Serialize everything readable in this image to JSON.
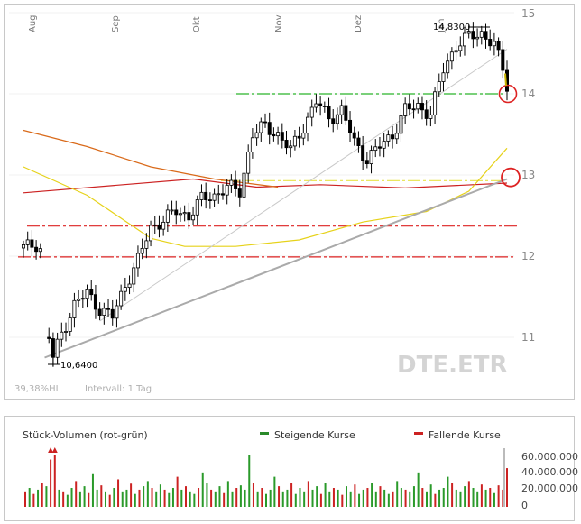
{
  "chart_data": [
    {
      "type": "candlestick",
      "symbol": "DTE.ETR",
      "months": [
        "Aug",
        "Sep",
        "Okt",
        "Nov",
        "Dez",
        "Jan"
      ],
      "y_ticks": [
        "15",
        "14",
        "13",
        "12",
        "11"
      ],
      "ylim": [
        10.6,
        15.2
      ],
      "grid": true,
      "high_label": "14,8300",
      "low_label": "10,6400",
      "high_value": 14.83,
      "low_value": 10.64,
      "volatility_label": "39,38%HL",
      "interval_label": "Intervall: 1 Tag",
      "colors": {
        "candle": "#000000",
        "ma_long": "#cc2222",
        "ma_orange": "#d96a1a",
        "ma_yellow": "#e6d21a",
        "resistance_green": "#2bb52b",
        "support_red": "#dd2222",
        "support_yellow": "#e8e24a",
        "trend_gray": "#aaaaaa",
        "marker": "#dd2222"
      },
      "horizontal_levels": [
        {
          "value": 14.0,
          "style": "dash-dot",
          "color": "green"
        },
        {
          "value": 12.93,
          "style": "dash-dot",
          "color": "yellow"
        },
        {
          "value": 12.37,
          "style": "dash-dot",
          "color": "red"
        },
        {
          "value": 11.99,
          "style": "dash-dot",
          "color": "red"
        }
      ],
      "price_path": [
        [
          0,
          12.1
        ],
        [
          3,
          12.15
        ],
        [
          5,
          12.05
        ],
        [
          6,
          11.0
        ],
        [
          7,
          10.75
        ],
        [
          9,
          11.05
        ],
        [
          12,
          11.4
        ],
        [
          15,
          11.55
        ],
        [
          18,
          11.35
        ],
        [
          21,
          11.25
        ],
        [
          24,
          11.65
        ],
        [
          27,
          11.95
        ],
        [
          30,
          12.35
        ],
        [
          33,
          12.45
        ],
        [
          36,
          12.55
        ],
        [
          39,
          12.5
        ],
        [
          42,
          12.7
        ],
        [
          45,
          12.75
        ],
        [
          48,
          12.85
        ],
        [
          51,
          12.8
        ],
        [
          54,
          13.5
        ],
        [
          57,
          13.6
        ],
        [
          60,
          13.5
        ],
        [
          63,
          13.3
        ],
        [
          66,
          13.6
        ],
        [
          69,
          13.9
        ],
        [
          72,
          13.7
        ],
        [
          75,
          13.8
        ],
        [
          78,
          13.4
        ],
        [
          81,
          13.2
        ],
        [
          84,
          13.35
        ],
        [
          87,
          13.5
        ],
        [
          90,
          13.8
        ],
        [
          93,
          13.85
        ],
        [
          96,
          13.75
        ],
        [
          99,
          14.3
        ],
        [
          102,
          14.6
        ],
        [
          105,
          14.7
        ],
        [
          108,
          14.75
        ],
        [
          111,
          14.6
        ],
        [
          113,
          14.3
        ],
        [
          114,
          14.1
        ]
      ],
      "moving_averages": [
        {
          "name": "red",
          "values": [
            [
              0,
              12.78
            ],
            [
              40,
              12.95
            ],
            [
              55,
              12.85
            ],
            [
              70,
              12.88
            ],
            [
              90,
              12.84
            ],
            [
              114,
              12.9
            ]
          ]
        },
        {
          "name": "orange",
          "values": [
            [
              0,
              13.55
            ],
            [
              15,
              13.35
            ],
            [
              30,
              13.1
            ],
            [
              45,
              12.95
            ],
            [
              60,
              12.85
            ]
          ]
        },
        {
          "name": "yellow",
          "values": [
            [
              0,
              13.1
            ],
            [
              15,
              12.75
            ],
            [
              30,
              12.22
            ],
            [
              38,
              12.12
            ],
            [
              50,
              12.12
            ],
            [
              65,
              12.2
            ],
            [
              80,
              12.42
            ],
            [
              95,
              12.55
            ],
            [
              105,
              12.8
            ],
            [
              114,
              13.33
            ]
          ]
        }
      ],
      "trendlines": [
        {
          "from": [
            5,
            10.75
          ],
          "to": [
            114,
            12.95
          ],
          "name": "long support"
        },
        {
          "from": [
            18,
            11.2
          ],
          "to": [
            114,
            14.55
          ],
          "name": "steep support"
        }
      ]
    },
    {
      "type": "bar",
      "title": "Stück-Volumen (rot-grün)",
      "legend_up": "Steigende Kurse",
      "legend_down": "Fallende Kurse",
      "y_ticks": [
        "60.000.000",
        "40.000.000",
        "20.000.000",
        "0"
      ],
      "ylim": [
        0,
        65000000
      ],
      "volumes": [
        [
          0,
          18,
          "r"
        ],
        [
          1,
          22,
          "g"
        ],
        [
          2,
          15,
          "r"
        ],
        [
          3,
          20,
          "g"
        ],
        [
          4,
          28,
          "r"
        ],
        [
          5,
          24,
          "g"
        ],
        [
          6,
          55,
          "r"
        ],
        [
          7,
          60,
          "r"
        ],
        [
          8,
          20,
          "g"
        ],
        [
          9,
          18,
          "r"
        ],
        [
          10,
          14,
          "g"
        ],
        [
          11,
          22,
          "g"
        ],
        [
          12,
          30,
          "r"
        ],
        [
          13,
          18,
          "g"
        ],
        [
          14,
          24,
          "g"
        ],
        [
          15,
          16,
          "r"
        ],
        [
          16,
          38,
          "g"
        ],
        [
          17,
          20,
          "g"
        ],
        [
          18,
          25,
          "r"
        ],
        [
          19,
          18,
          "g"
        ],
        [
          20,
          14,
          "r"
        ],
        [
          21,
          22,
          "g"
        ],
        [
          22,
          32,
          "r"
        ],
        [
          23,
          18,
          "g"
        ],
        [
          24,
          20,
          "g"
        ],
        [
          25,
          27,
          "r"
        ],
        [
          26,
          15,
          "g"
        ],
        [
          27,
          20,
          "r"
        ],
        [
          28,
          24,
          "g"
        ],
        [
          29,
          30,
          "g"
        ],
        [
          30,
          22,
          "r"
        ],
        [
          31,
          18,
          "g"
        ],
        [
          32,
          26,
          "g"
        ],
        [
          33,
          20,
          "r"
        ],
        [
          34,
          16,
          "g"
        ],
        [
          35,
          22,
          "g"
        ],
        [
          36,
          35,
          "r"
        ],
        [
          37,
          20,
          "g"
        ],
        [
          38,
          24,
          "r"
        ],
        [
          39,
          18,
          "g"
        ],
        [
          40,
          15,
          "g"
        ],
        [
          41,
          22,
          "r"
        ],
        [
          42,
          40,
          "g"
        ],
        [
          43,
          28,
          "g"
        ],
        [
          44,
          20,
          "r"
        ],
        [
          45,
          18,
          "g"
        ],
        [
          46,
          24,
          "g"
        ],
        [
          47,
          16,
          "r"
        ],
        [
          48,
          30,
          "g"
        ],
        [
          49,
          18,
          "g"
        ],
        [
          50,
          22,
          "r"
        ],
        [
          51,
          25,
          "g"
        ],
        [
          52,
          20,
          "g"
        ],
        [
          53,
          60,
          "g"
        ],
        [
          54,
          28,
          "r"
        ],
        [
          55,
          18,
          "g"
        ],
        [
          56,
          22,
          "r"
        ],
        [
          57,
          15,
          "g"
        ],
        [
          58,
          20,
          "g"
        ],
        [
          59,
          35,
          "g"
        ],
        [
          60,
          24,
          "r"
        ],
        [
          61,
          18,
          "g"
        ],
        [
          62,
          20,
          "g"
        ],
        [
          63,
          28,
          "r"
        ],
        [
          64,
          15,
          "g"
        ],
        [
          65,
          22,
          "g"
        ],
        [
          66,
          18,
          "g"
        ],
        [
          67,
          30,
          "r"
        ],
        [
          68,
          20,
          "g"
        ],
        [
          69,
          24,
          "g"
        ],
        [
          70,
          15,
          "r"
        ],
        [
          71,
          28,
          "g"
        ],
        [
          72,
          18,
          "g"
        ],
        [
          73,
          22,
          "r"
        ],
        [
          74,
          20,
          "g"
        ],
        [
          75,
          14,
          "r"
        ],
        [
          76,
          24,
          "g"
        ],
        [
          77,
          18,
          "g"
        ],
        [
          78,
          26,
          "r"
        ],
        [
          79,
          15,
          "g"
        ],
        [
          80,
          20,
          "g"
        ],
        [
          81,
          22,
          "r"
        ],
        [
          82,
          28,
          "g"
        ],
        [
          83,
          18,
          "g"
        ],
        [
          84,
          24,
          "r"
        ],
        [
          85,
          20,
          "g"
        ],
        [
          86,
          15,
          "g"
        ],
        [
          87,
          18,
          "r"
        ],
        [
          88,
          30,
          "g"
        ],
        [
          89,
          22,
          "g"
        ],
        [
          90,
          20,
          "r"
        ],
        [
          91,
          18,
          "g"
        ],
        [
          92,
          24,
          "g"
        ],
        [
          93,
          40,
          "g"
        ],
        [
          94,
          22,
          "r"
        ],
        [
          95,
          18,
          "g"
        ],
        [
          96,
          26,
          "g"
        ],
        [
          97,
          15,
          "r"
        ],
        [
          98,
          20,
          "g"
        ],
        [
          99,
          22,
          "g"
        ],
        [
          100,
          35,
          "g"
        ],
        [
          101,
          28,
          "r"
        ],
        [
          102,
          20,
          "g"
        ],
        [
          103,
          18,
          "g"
        ],
        [
          104,
          24,
          "g"
        ],
        [
          105,
          30,
          "r"
        ],
        [
          106,
          22,
          "g"
        ],
        [
          107,
          18,
          "g"
        ],
        [
          108,
          26,
          "r"
        ],
        [
          109,
          20,
          "g"
        ],
        [
          110,
          22,
          "r"
        ],
        [
          111,
          16,
          "g"
        ],
        [
          112,
          25,
          "r"
        ],
        [
          113,
          20,
          "r"
        ],
        [
          114,
          45,
          "r"
        ]
      ]
    }
  ]
}
